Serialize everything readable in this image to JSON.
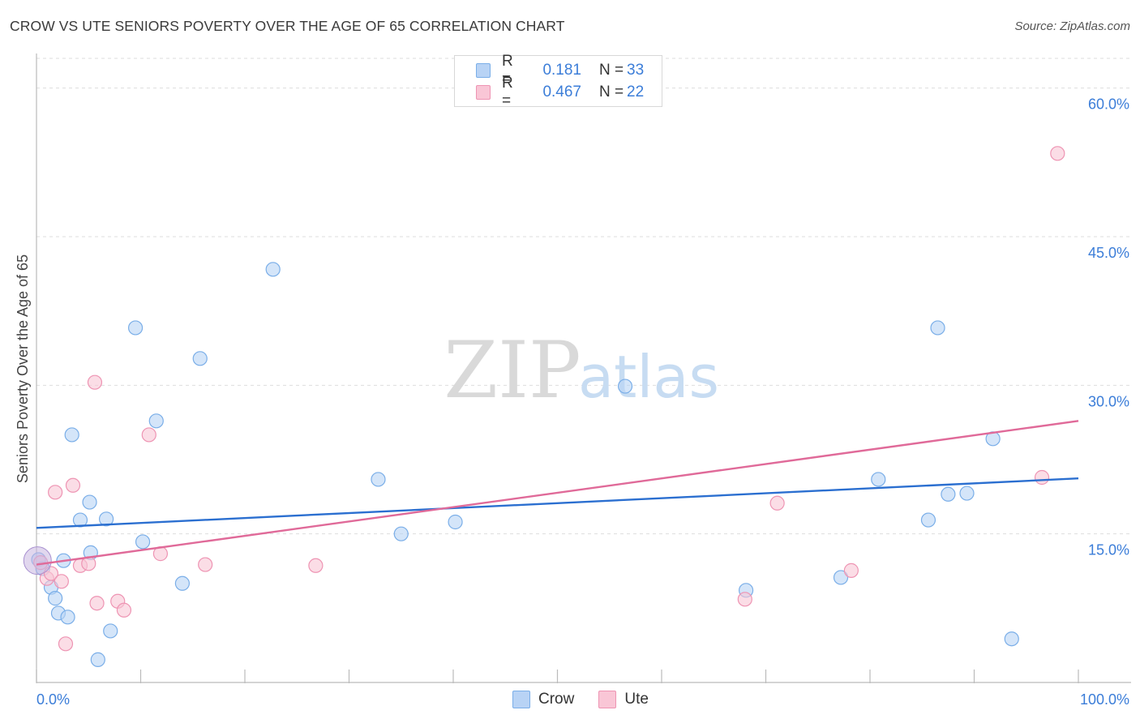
{
  "title": "CROW VS UTE SENIORS POVERTY OVER THE AGE OF 65 CORRELATION CHART",
  "source": "Source: ZipAtlas.com",
  "watermark": {
    "zip": "ZIP",
    "atlas": "atlas"
  },
  "colors": {
    "crow_fill": "#b8d3f5",
    "crow_stroke": "#7aaee8",
    "crow_line": "#2b6fd0",
    "ute_fill": "#f9c6d6",
    "ute_stroke": "#ee94b3",
    "ute_line": "#e06a99",
    "tick_text": "#3b7dd8",
    "grid": "#dddddd"
  },
  "legend": {
    "rows": [
      {
        "r_label": "R =",
        "r_value": "0.181",
        "n_label": "N =",
        "n_value": "33"
      },
      {
        "r_label": "R =",
        "r_value": "0.467",
        "n_label": "N =",
        "n_value": "22"
      }
    ]
  },
  "bottom_legend": {
    "crow": "Crow",
    "ute": "Ute"
  },
  "chart_data": {
    "type": "scatter",
    "title": "CROW VS UTE SENIORS POVERTY OVER THE AGE OF 65 CORRELATION CHART",
    "xlabel": "",
    "ylabel": "Seniors Poverty Over the Age of 65",
    "xlim": [
      0,
      100
    ],
    "ylim": [
      0,
      63
    ],
    "x_tick_labels": [
      "0.0%",
      "100.0%"
    ],
    "y_ticks": [
      15,
      30,
      45,
      60
    ],
    "y_tick_labels": [
      "15.0%",
      "30.0%",
      "45.0%",
      "60.0%"
    ],
    "grid": true,
    "series": [
      {
        "name": "Crow",
        "R": 0.181,
        "N": 33,
        "points": [
          [
            0.2,
            12.4
          ],
          [
            0.6,
            11.5
          ],
          [
            1.4,
            9.6
          ],
          [
            1.8,
            8.5
          ],
          [
            2.1,
            7.0
          ],
          [
            2.6,
            12.3
          ],
          [
            3.0,
            6.6
          ],
          [
            3.4,
            25.0
          ],
          [
            4.2,
            16.4
          ],
          [
            5.1,
            18.2
          ],
          [
            5.2,
            13.1
          ],
          [
            5.9,
            2.3
          ],
          [
            6.7,
            16.5
          ],
          [
            7.1,
            5.2
          ],
          [
            9.5,
            35.8
          ],
          [
            10.2,
            14.2
          ],
          [
            11.5,
            26.4
          ],
          [
            14.0,
            10.0
          ],
          [
            15.7,
            32.7
          ],
          [
            22.7,
            41.7
          ],
          [
            32.8,
            20.5
          ],
          [
            35.0,
            15.0
          ],
          [
            40.2,
            16.2
          ],
          [
            56.5,
            29.9
          ],
          [
            68.1,
            9.3
          ],
          [
            77.2,
            10.6
          ],
          [
            80.8,
            20.5
          ],
          [
            85.6,
            16.4
          ],
          [
            86.5,
            35.8
          ],
          [
            87.5,
            19.0
          ],
          [
            89.3,
            19.1
          ],
          [
            91.8,
            24.6
          ],
          [
            93.6,
            4.4
          ]
        ],
        "trend": {
          "x": [
            0,
            100
          ],
          "y": [
            15.6,
            20.6
          ]
        }
      },
      {
        "name": "Ute",
        "R": 0.467,
        "N": 22,
        "points": [
          [
            0.4,
            12.1
          ],
          [
            1.0,
            10.5
          ],
          [
            1.4,
            11.0
          ],
          [
            1.8,
            19.2
          ],
          [
            2.4,
            10.2
          ],
          [
            2.8,
            3.9
          ],
          [
            3.5,
            19.9
          ],
          [
            4.2,
            11.8
          ],
          [
            5.0,
            12.0
          ],
          [
            5.6,
            30.3
          ],
          [
            5.8,
            8.0
          ],
          [
            7.8,
            8.2
          ],
          [
            8.4,
            7.3
          ],
          [
            10.8,
            25.0
          ],
          [
            11.9,
            13.0
          ],
          [
            16.2,
            11.9
          ],
          [
            26.8,
            11.8
          ],
          [
            68.0,
            8.4
          ],
          [
            71.1,
            18.1
          ],
          [
            78.2,
            11.3
          ],
          [
            96.5,
            20.7
          ],
          [
            98.0,
            53.4
          ]
        ],
        "trend": {
          "x": [
            0,
            100
          ],
          "y": [
            11.9,
            26.4
          ]
        }
      }
    ]
  }
}
